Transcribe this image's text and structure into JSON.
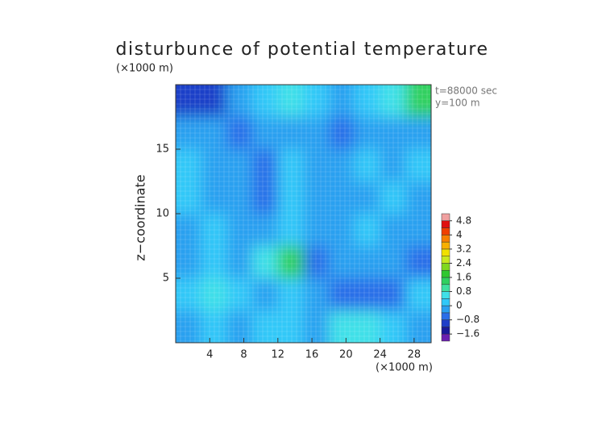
{
  "chart_data": {
    "type": "contour",
    "title": "disturbunce of potential temperature",
    "x_unit": "(×1000 m)",
    "y_unit": "(×1000 m)",
    "ylabel": "z−coordinate",
    "annotations": [
      "t=88000 sec",
      "y=100 m"
    ],
    "xlim": [
      0,
      30
    ],
    "ylim": [
      0,
      20
    ],
    "xticks": [
      4,
      8,
      12,
      16,
      20,
      24,
      28
    ],
    "yticks": [
      5,
      10,
      15
    ],
    "grid": true,
    "x": [
      1.5,
      4.5,
      7.5,
      10.5,
      13.5,
      16.5,
      19.5,
      22.5,
      25.5,
      28.5
    ],
    "z": [
      18.75,
      16.25,
      13.75,
      11.25,
      8.75,
      6.25,
      3.75,
      1.25
    ],
    "values": [
      [
        -1.2,
        -1.0,
        -0.4,
        0.0,
        0.4,
        0.0,
        -0.2,
        0.0,
        0.4,
        1.2
      ],
      [
        -0.4,
        -0.2,
        -0.6,
        -0.4,
        -0.2,
        -0.4,
        -0.6,
        -0.4,
        -0.2,
        -0.2
      ],
      [
        0.0,
        -0.4,
        -0.2,
        -0.6,
        0.0,
        -0.4,
        -0.2,
        0.0,
        -0.4,
        0.0
      ],
      [
        0.0,
        -0.2,
        -0.4,
        -0.6,
        0.0,
        -0.4,
        -0.2,
        -0.4,
        0.0,
        -0.2
      ],
      [
        -0.2,
        0.0,
        -0.2,
        -0.4,
        0.0,
        -0.4,
        -0.2,
        0.0,
        -0.2,
        -0.4
      ],
      [
        -0.4,
        0.0,
        -0.2,
        0.4,
        1.2,
        -0.8,
        -0.4,
        -0.2,
        -0.4,
        -0.8
      ],
      [
        0.2,
        0.4,
        0.0,
        -0.2,
        0.0,
        -0.4,
        -0.6,
        -0.8,
        -0.6,
        0.0
      ],
      [
        -0.2,
        0.0,
        -0.4,
        0.0,
        0.2,
        -0.4,
        0.4,
        0.6,
        0.0,
        -0.2
      ]
    ],
    "colorbar": {
      "levels": [
        -2.0,
        -1.6,
        -1.2,
        -0.8,
        -0.4,
        0,
        0.4,
        0.8,
        1.2,
        1.6,
        2.0,
        2.4,
        2.8,
        3.2,
        3.6,
        4.0,
        4.4,
        4.8,
        5.2
      ],
      "colors": [
        "#6a1fb0",
        "#1a1a9a",
        "#1f3fc8",
        "#2a6ee8",
        "#2aa0f0",
        "#30c8f8",
        "#40e0e8",
        "#40e0a0",
        "#30d060",
        "#30c830",
        "#80d820",
        "#c8e820",
        "#f0e000",
        "#f8b000",
        "#f88000",
        "#f04000",
        "#e01010",
        "#f0a0a0"
      ],
      "ticks": [
        {
          "value": -1.6,
          "label": "−1.6"
        },
        {
          "value": -0.8,
          "label": "−0.8"
        },
        0,
        0.8,
        1.6,
        2.4,
        3.2,
        4,
        4.8
      ]
    }
  }
}
